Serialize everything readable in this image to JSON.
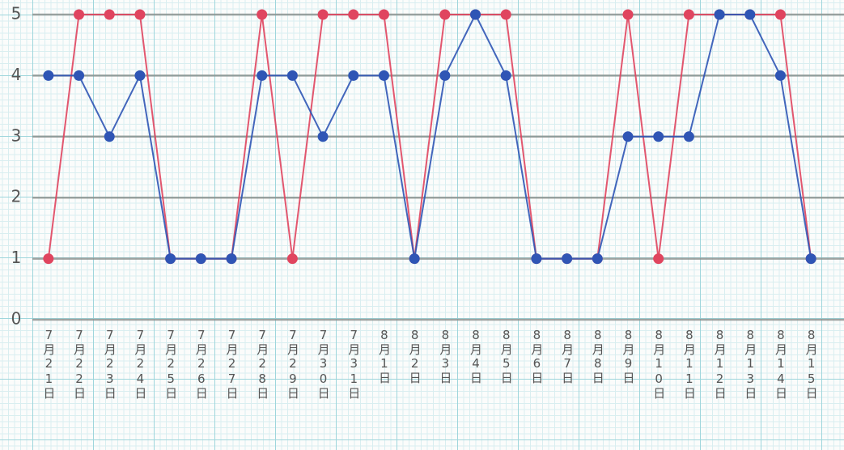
{
  "chart_data": {
    "type": "line",
    "categories": [
      "7月21日",
      "7月22日",
      "7月23日",
      "7月24日",
      "7月25日",
      "7月26日",
      "7月27日",
      "7月28日",
      "7月29日",
      "7月30日",
      "7月31日",
      "8月1日",
      "8月2日",
      "8月3日",
      "8月4日",
      "8月5日",
      "8月6日",
      "8月7日",
      "8月8日",
      "8月9日",
      "8月10日",
      "8月11日",
      "8月12日",
      "8月13日",
      "8月14日",
      "8月15日"
    ],
    "series": [
      {
        "color": "#e0455f",
        "values": [
          1,
          5,
          5,
          5,
          1,
          1,
          1,
          5,
          1,
          5,
          5,
          5,
          1,
          5,
          5,
          5,
          1,
          1,
          1,
          5,
          1,
          5,
          5,
          5,
          5,
          1
        ]
      },
      {
        "color": "#2f55b5",
        "values": [
          4,
          4,
          3,
          4,
          1,
          1,
          1,
          4,
          4,
          3,
          4,
          4,
          1,
          4,
          5,
          4,
          1,
          1,
          1,
          3,
          3,
          3,
          5,
          5,
          4,
          1
        ]
      }
    ],
    "ylim": [
      0,
      5
    ],
    "yticks": [
      0,
      1,
      2,
      3,
      4,
      5
    ],
    "grid": true
  }
}
